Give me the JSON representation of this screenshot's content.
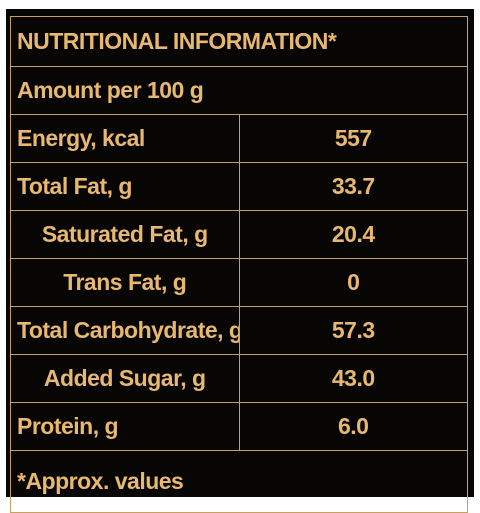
{
  "label": {
    "title": "NUTRITIONAL INFORMATION*",
    "serving": "Amount per 100 g",
    "rows": [
      {
        "name": "Energy, kcal",
        "value": "557",
        "indent": false
      },
      {
        "name": "Total Fat, g",
        "value": "33.7",
        "indent": false
      },
      {
        "name": "Saturated Fat, g",
        "value": "20.4",
        "indent": true
      },
      {
        "name": "Trans Fat, g",
        "value": "0",
        "indent": true
      },
      {
        "name": "Total Carbohydrate, g",
        "value": "57.3",
        "indent": false
      },
      {
        "name": "Added Sugar, g",
        "value": "43.0",
        "indent": true
      },
      {
        "name": "Protein, g",
        "value": "6.0",
        "indent": false
      }
    ],
    "footnote": "*Approx. values",
    "colors": {
      "background": "#070605",
      "text": "#e8b870",
      "border": "#c9a15a"
    }
  }
}
